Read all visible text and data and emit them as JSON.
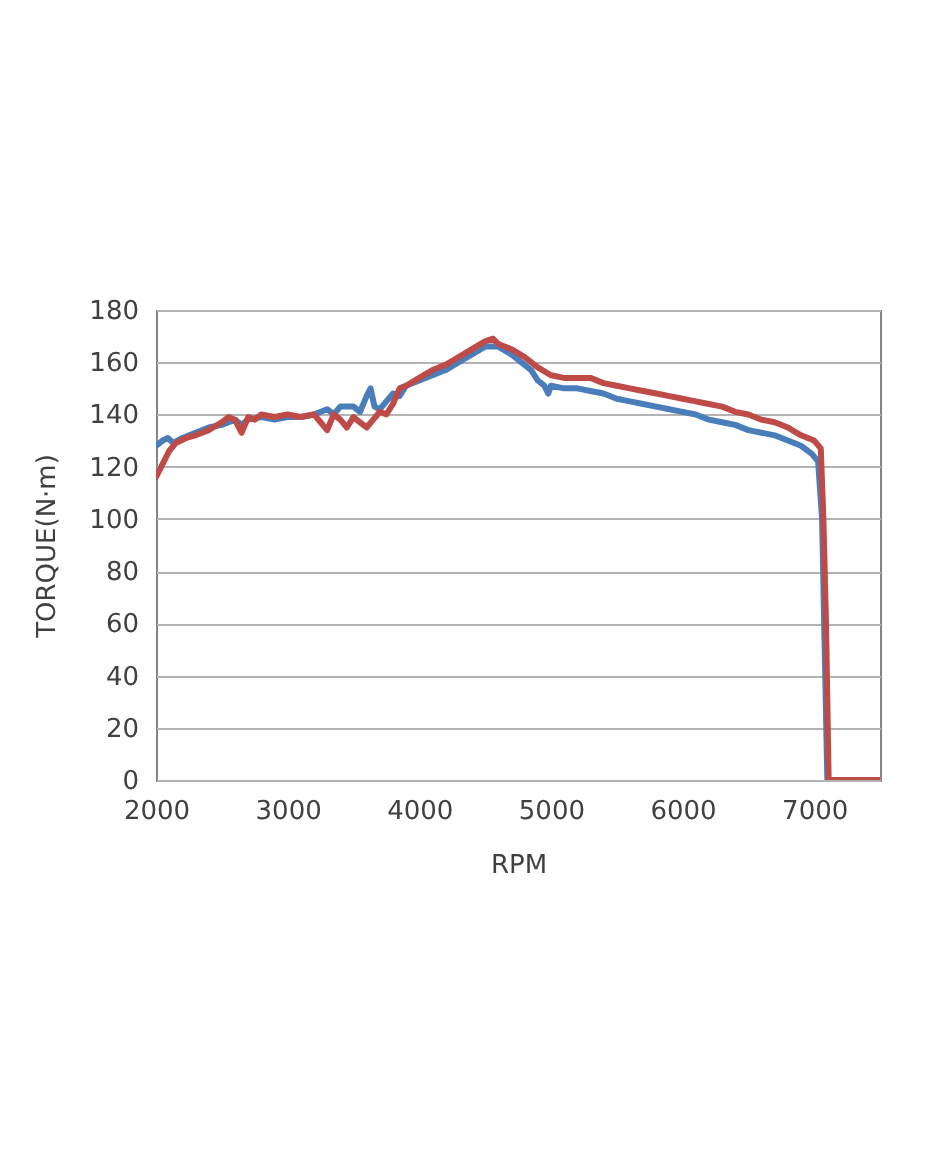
{
  "chart_data": {
    "type": "line",
    "xlabel": "RPM",
    "ylabel": "TORQUE(N·m)",
    "xlim": [
      2000,
      7500
    ],
    "xticks": [
      2000,
      3000,
      4000,
      5000,
      6000,
      7000
    ],
    "ylim": [
      0,
      180
    ],
    "yticks": [
      0,
      20,
      40,
      60,
      80,
      100,
      120,
      140,
      160,
      180
    ],
    "grid": "y",
    "series": [
      {
        "color": "#4a7ebb",
        "x": [
          2000,
          2050,
          2090,
          2130,
          2200,
          2300,
          2400,
          2500,
          2600,
          2650,
          2700,
          2800,
          2900,
          3000,
          3100,
          3200,
          3300,
          3350,
          3400,
          3500,
          3550,
          3600,
          3630,
          3660,
          3700,
          3750,
          3800,
          3850,
          3900,
          4000,
          4100,
          4200,
          4300,
          4400,
          4500,
          4600,
          4700,
          4800,
          4850,
          4900,
          4950,
          4980,
          5000,
          5100,
          5200,
          5300,
          5400,
          5500,
          5600,
          5700,
          5800,
          5900,
          6000,
          6100,
          6200,
          6300,
          6400,
          6500,
          6600,
          6700,
          6800,
          6900,
          6980,
          7030,
          7060,
          7080,
          7100,
          7500
        ],
        "values": [
          128,
          130,
          131,
          129,
          131,
          133,
          135,
          136,
          138,
          136,
          138,
          139,
          138,
          139,
          139,
          140,
          142,
          140,
          143,
          143,
          141,
          147,
          150,
          143,
          142,
          145,
          148,
          147,
          151,
          153,
          155,
          157,
          160,
          163,
          166,
          166,
          163,
          159,
          157,
          153,
          151,
          148,
          151,
          150,
          150,
          149,
          148,
          146,
          145,
          144,
          143,
          142,
          141,
          140,
          138,
          137,
          136,
          134,
          133,
          132,
          130,
          128,
          125,
          122,
          100,
          50,
          0,
          0
        ]
      },
      {
        "color": "#be4b48",
        "x": [
          2000,
          2050,
          2100,
          2150,
          2230,
          2300,
          2400,
          2500,
          2550,
          2600,
          2650,
          2700,
          2750,
          2800,
          2900,
          3000,
          3100,
          3200,
          3250,
          3300,
          3350,
          3400,
          3450,
          3500,
          3550,
          3600,
          3650,
          3700,
          3750,
          3800,
          3850,
          3900,
          4000,
          4100,
          4200,
          4300,
          4400,
          4500,
          4560,
          4600,
          4700,
          4800,
          4900,
          5000,
          5100,
          5200,
          5300,
          5400,
          5500,
          5600,
          5700,
          5800,
          5900,
          6000,
          6100,
          6200,
          6300,
          6400,
          6500,
          6600,
          6700,
          6800,
          6900,
          7000,
          7050,
          7070,
          7090,
          7110,
          7500
        ],
        "values": [
          116,
          121,
          126,
          129,
          131,
          132,
          134,
          137,
          139,
          138,
          133,
          139,
          138,
          140,
          139,
          140,
          139,
          140,
          137,
          134,
          140,
          138,
          135,
          139,
          137,
          135,
          138,
          141,
          140,
          144,
          150,
          151,
          154,
          157,
          159,
          162,
          165,
          168,
          169,
          167,
          165,
          162,
          158,
          155,
          154,
          154,
          154,
          152,
          151,
          150,
          149,
          148,
          147,
          146,
          145,
          144,
          143,
          141,
          140,
          138,
          137,
          135,
          132,
          130,
          127,
          100,
          60,
          0,
          0
        ]
      }
    ]
  }
}
